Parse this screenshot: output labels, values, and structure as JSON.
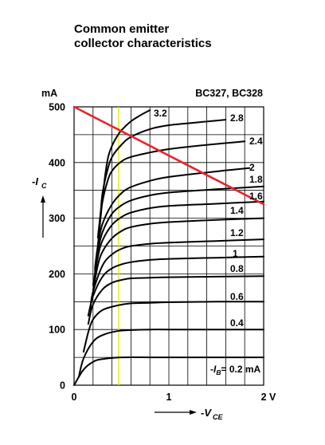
{
  "header": {
    "title_line1": "Common emitter",
    "title_line2": "collector characteristics"
  },
  "chart_data": {
    "type": "line",
    "title": "Common emitter collector characteristics",
    "device_label": "BC327, BC328",
    "xlabel": "-VCE",
    "ylabel": "-IC",
    "x_unit": "V",
    "y_unit": "mA",
    "xlim": [
      0,
      2
    ],
    "ylim": [
      0,
      500
    ],
    "x_ticks": [
      0,
      1,
      2
    ],
    "x_tick_labels": [
      "0",
      "1",
      "2 V"
    ],
    "y_ticks": [
      0,
      100,
      200,
      300,
      400,
      500
    ],
    "y_tick_labels": [
      "0",
      "100",
      "200",
      "300",
      "400",
      "500"
    ],
    "grid": true,
    "parameter": "-IB",
    "parameter_unit": "mA",
    "series": [
      {
        "name": "0.2",
        "label": "-IB= 0.2 mA",
        "x": [
          0,
          0.1,
          0.2,
          0.3,
          0.5,
          0.8,
          1.0,
          1.5,
          2.0
        ],
        "y": [
          0,
          28,
          42,
          47,
          50,
          50,
          50,
          50,
          50
        ]
      },
      {
        "name": "0.4",
        "label": "0.4",
        "x": [
          0.05,
          0.1,
          0.2,
          0.3,
          0.45,
          0.6,
          0.8,
          1.0,
          1.5,
          2.0
        ],
        "y": [
          15,
          48,
          78,
          90,
          97,
          99,
          100,
          100,
          100,
          100
        ]
      },
      {
        "name": "0.6",
        "label": "0.6",
        "x": [
          0.1,
          0.15,
          0.2,
          0.3,
          0.45,
          0.6,
          0.8,
          1.0,
          1.5,
          2.0
        ],
        "y": [
          60,
          95,
          118,
          135,
          143,
          147,
          148,
          149,
          150,
          150
        ]
      },
      {
        "name": "0.8",
        "label": "0.8",
        "x": [
          0.15,
          0.2,
          0.3,
          0.4,
          0.5,
          0.6,
          0.8,
          1.0,
          1.5,
          2.0
        ],
        "y": [
          110,
          145,
          172,
          184,
          189,
          192,
          193,
          194,
          195,
          196
        ]
      },
      {
        "name": "1",
        "label": "1",
        "x": [
          0.15,
          0.2,
          0.3,
          0.4,
          0.5,
          0.6,
          0.8,
          1.0,
          1.5,
          2.0
        ],
        "y": [
          125,
          160,
          195,
          210,
          217,
          221,
          225,
          227,
          229,
          231
        ]
      },
      {
        "name": "1.2",
        "label": "1.2",
        "x": [
          0.17,
          0.2,
          0.3,
          0.4,
          0.5,
          0.6,
          0.8,
          1.0,
          1.5,
          2.0
        ],
        "y": [
          135,
          168,
          215,
          235,
          245,
          250,
          254,
          256,
          259,
          262
        ]
      },
      {
        "name": "1.4",
        "label": "1.4",
        "x": [
          0.2,
          0.25,
          0.3,
          0.4,
          0.5,
          0.6,
          0.8,
          1.0,
          1.5,
          2.0
        ],
        "y": [
          170,
          215,
          240,
          264,
          277,
          284,
          290,
          293,
          297,
          300
        ]
      },
      {
        "name": "1.6",
        "label": "1.6",
        "x": [
          0.2,
          0.25,
          0.3,
          0.4,
          0.5,
          0.6,
          0.8,
          1.0,
          1.5,
          2.0
        ],
        "y": [
          180,
          230,
          260,
          288,
          302,
          310,
          318,
          322,
          326,
          330
        ]
      },
      {
        "name": "1.8",
        "label": "1.8",
        "x": [
          0.22,
          0.25,
          0.3,
          0.4,
          0.5,
          0.6,
          0.8,
          1.0,
          1.5,
          2.0
        ],
        "y": [
          205,
          240,
          275,
          308,
          323,
          332,
          341,
          346,
          352,
          357
        ]
      },
      {
        "name": "2",
        "label": "2",
        "x": [
          0.22,
          0.25,
          0.3,
          0.4,
          0.5,
          0.6,
          0.8,
          1.0,
          1.5,
          1.85
        ],
        "y": [
          210,
          250,
          290,
          325,
          345,
          356,
          367,
          374,
          384,
          390
        ]
      },
      {
        "name": "2.4",
        "label": "2.4",
        "x": [
          0.25,
          0.28,
          0.3,
          0.35,
          0.4,
          0.5,
          0.6,
          0.8,
          1.0,
          1.3,
          1.8
        ],
        "y": [
          250,
          300,
          330,
          365,
          385,
          402,
          410,
          418,
          424,
          430,
          438
        ]
      },
      {
        "name": "2.8",
        "label": "2.8",
        "x": [
          0.25,
          0.28,
          0.3,
          0.35,
          0.4,
          0.5,
          0.6,
          0.8,
          1.0,
          1.3,
          1.6
        ],
        "y": [
          265,
          310,
          345,
          385,
          410,
          432,
          446,
          460,
          467,
          472,
          477
        ]
      },
      {
        "name": "3.2",
        "label": "3.2",
        "x": [
          0.3,
          0.33,
          0.36,
          0.4,
          0.45,
          0.5,
          0.6,
          0.7,
          0.8
        ],
        "y": [
          335,
          380,
          410,
          430,
          446,
          458,
          474,
          485,
          494
        ]
      }
    ],
    "load_line": {
      "x": [
        0,
        2.0
      ],
      "y": [
        500,
        325
      ],
      "color": "#e8242c"
    },
    "marker_line": {
      "x": 0.47,
      "color": "#e6e600"
    },
    "colors": {
      "curves": "#000000",
      "grid": "#000000",
      "load_line": "#e8242c",
      "marker_line": "#e6e600"
    }
  }
}
